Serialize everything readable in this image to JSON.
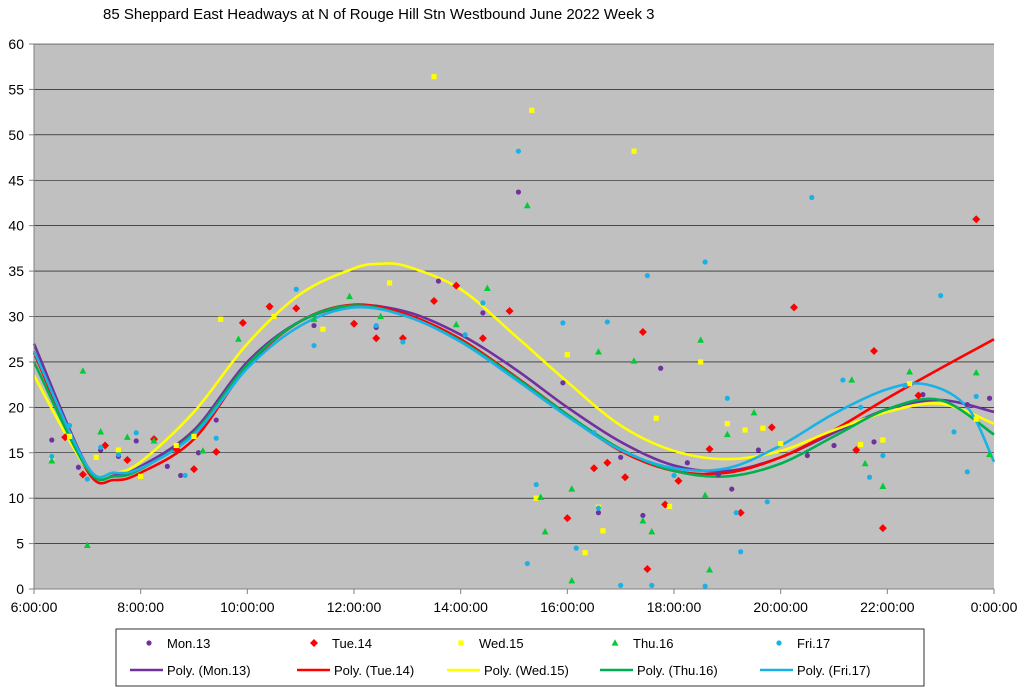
{
  "chart_data": {
    "type": "scatter",
    "title": "85 Sheppard East Headways at N of Rouge Hill Stn Westbound June 2022  Week 3",
    "xlabel": "",
    "ylabel": "",
    "xlim": [
      "6:00:00",
      "0:00:00"
    ],
    "ylim": [
      0,
      60
    ],
    "x_ticks": [
      "6:00:00",
      "8:00:00",
      "10:00:00",
      "12:00:00",
      "14:00:00",
      "16:00:00",
      "18:00:00",
      "20:00:00",
      "22:00:00",
      "0:00:00"
    ],
    "y_ticks": [
      "0",
      "5",
      "10",
      "15",
      "20",
      "25",
      "30",
      "35",
      "40",
      "45",
      "50",
      "55",
      "60"
    ],
    "grid": "horizontal",
    "legend_position": "bottom",
    "plot_background": "#c0c0c0",
    "series": [
      {
        "name": "Mon.13",
        "marker": "circle",
        "color": "#7030a0",
        "points": [
          [
            "6:20",
            16.4
          ],
          [
            "6:50",
            13.4
          ],
          [
            "7:15",
            15.3
          ],
          [
            "7:35",
            14.6
          ],
          [
            "7:55",
            16.3
          ],
          [
            "8:30",
            13.5
          ],
          [
            "8:45",
            12.5
          ],
          [
            "9:05",
            15.0
          ],
          [
            "9:25",
            18.6
          ],
          [
            "10:25",
            31.0
          ],
          [
            "11:15",
            29.0
          ],
          [
            "12:25",
            28.8
          ],
          [
            "13:35",
            33.9
          ],
          [
            "14:25",
            30.4
          ],
          [
            "15:05",
            43.7
          ],
          [
            "15:55",
            22.7
          ],
          [
            "16:35",
            8.4
          ],
          [
            "17:00",
            14.5
          ],
          [
            "17:25",
            8.1
          ],
          [
            "17:45",
            24.3
          ],
          [
            "18:15",
            13.9
          ],
          [
            "18:50",
            12.6
          ],
          [
            "19:05",
            11.0
          ],
          [
            "19:35",
            15.3
          ],
          [
            "20:30",
            14.7
          ],
          [
            "21:00",
            15.8
          ],
          [
            "21:45",
            16.2
          ],
          [
            "22:40",
            21.4
          ],
          [
            "23:30",
            20.3
          ],
          [
            "23:55",
            21.0
          ]
        ]
      },
      {
        "name": "Tue.14",
        "marker": "diamond",
        "color": "#ff0000",
        "points": [
          [
            "6:35",
            16.7
          ],
          [
            "6:55",
            12.6
          ],
          [
            "7:20",
            15.8
          ],
          [
            "7:45",
            14.2
          ],
          [
            "8:15",
            16.5
          ],
          [
            "8:40",
            15.4
          ],
          [
            "9:00",
            13.2
          ],
          [
            "9:25",
            15.1
          ],
          [
            "9:55",
            29.3
          ],
          [
            "10:25",
            31.1
          ],
          [
            "10:55",
            30.9
          ],
          [
            "12:00",
            29.2
          ],
          [
            "12:25",
            27.6
          ],
          [
            "12:55",
            27.6
          ],
          [
            "13:30",
            31.7
          ],
          [
            "13:55",
            33.4
          ],
          [
            "14:25",
            27.6
          ],
          [
            "14:55",
            30.6
          ],
          [
            "16:00",
            7.8
          ],
          [
            "16:30",
            13.3
          ],
          [
            "16:45",
            13.9
          ],
          [
            "17:05",
            12.3
          ],
          [
            "17:25",
            28.3
          ],
          [
            "17:30",
            2.2
          ],
          [
            "17:50",
            9.3
          ],
          [
            "18:05",
            11.9
          ],
          [
            "18:40",
            15.4
          ],
          [
            "19:15",
            8.4
          ],
          [
            "19:50",
            17.8
          ],
          [
            "20:15",
            31.0
          ],
          [
            "21:25",
            15.3
          ],
          [
            "21:45",
            26.2
          ],
          [
            "21:55",
            6.7
          ],
          [
            "22:35",
            21.3
          ],
          [
            "23:40",
            40.7
          ]
        ]
      },
      {
        "name": "Wed.15",
        "marker": "square",
        "color": "#ffff00",
        "points": [
          [
            "6:20",
            14.5
          ],
          [
            "6:40",
            16.8
          ],
          [
            "7:10",
            14.5
          ],
          [
            "7:35",
            15.3
          ],
          [
            "8:00",
            12.4
          ],
          [
            "8:40",
            15.8
          ],
          [
            "9:00",
            16.8
          ],
          [
            "9:30",
            29.7
          ],
          [
            "10:30",
            30.0
          ],
          [
            "11:25",
            28.6
          ],
          [
            "12:40",
            33.7
          ],
          [
            "13:30",
            56.4
          ],
          [
            "15:20",
            52.7
          ],
          [
            "15:25",
            10.0
          ],
          [
            "16:00",
            25.8
          ],
          [
            "16:20",
            4.0
          ],
          [
            "16:35",
            9.0
          ],
          [
            "16:40",
            6.4
          ],
          [
            "17:15",
            48.2
          ],
          [
            "17:40",
            18.8
          ],
          [
            "17:55",
            9.1
          ],
          [
            "18:30",
            25.0
          ],
          [
            "19:00",
            18.2
          ],
          [
            "19:20",
            17.5
          ],
          [
            "19:40",
            17.7
          ],
          [
            "20:00",
            16.0
          ],
          [
            "21:30",
            15.9
          ],
          [
            "21:55",
            16.4
          ],
          [
            "22:25",
            22.6
          ],
          [
            "23:40",
            18.7
          ]
        ]
      },
      {
        "name": "Thu.16",
        "marker": "triangle",
        "color": "#00cc33",
        "points": [
          [
            "6:20",
            14.1
          ],
          [
            "6:55",
            24.0
          ],
          [
            "7:00",
            4.8
          ],
          [
            "7:15",
            17.3
          ],
          [
            "7:45",
            16.7
          ],
          [
            "8:15",
            16.3
          ],
          [
            "9:10",
            15.2
          ],
          [
            "9:50",
            27.5
          ],
          [
            "11:15",
            29.7
          ],
          [
            "11:55",
            32.2
          ],
          [
            "12:30",
            30.0
          ],
          [
            "13:55",
            29.1
          ],
          [
            "14:30",
            33.1
          ],
          [
            "15:15",
            42.2
          ],
          [
            "15:30",
            10.1
          ],
          [
            "15:35",
            6.3
          ],
          [
            "16:05",
            11.0
          ],
          [
            "16:05",
            0.9
          ],
          [
            "16:35",
            26.1
          ],
          [
            "17:15",
            25.1
          ],
          [
            "17:25",
            7.5
          ],
          [
            "17:35",
            6.3
          ],
          [
            "18:30",
            27.4
          ],
          [
            "18:35",
            10.3
          ],
          [
            "18:40",
            2.1
          ],
          [
            "19:00",
            17.0
          ],
          [
            "19:30",
            19.4
          ],
          [
            "21:20",
            23.0
          ],
          [
            "21:35",
            13.8
          ],
          [
            "21:55",
            11.3
          ],
          [
            "22:25",
            23.9
          ],
          [
            "23:55",
            14.8
          ],
          [
            "23:40",
            23.8
          ]
        ]
      },
      {
        "name": "Fri.17",
        "marker": "circle",
        "color": "#1ab2e6",
        "points": [
          [
            "6:20",
            14.6
          ],
          [
            "6:40",
            18.0
          ],
          [
            "7:00",
            12.1
          ],
          [
            "7:15",
            15.6
          ],
          [
            "7:35",
            14.8
          ],
          [
            "7:55",
            17.2
          ],
          [
            "8:50",
            12.5
          ],
          [
            "9:25",
            16.6
          ],
          [
            "10:55",
            33.0
          ],
          [
            "11:15",
            26.8
          ],
          [
            "12:25",
            29.0
          ],
          [
            "12:55",
            27.2
          ],
          [
            "14:05",
            28.0
          ],
          [
            "14:25",
            31.5
          ],
          [
            "15:05",
            48.2
          ],
          [
            "15:15",
            2.8
          ],
          [
            "15:25",
            11.5
          ],
          [
            "15:55",
            29.3
          ],
          [
            "16:10",
            4.5
          ],
          [
            "16:30",
            17.2
          ],
          [
            "16:35",
            8.9
          ],
          [
            "16:45",
            29.4
          ],
          [
            "17:00",
            0.4
          ],
          [
            "17:30",
            34.5
          ],
          [
            "17:35",
            0.4
          ],
          [
            "18:00",
            12.5
          ],
          [
            "18:35",
            36.0
          ],
          [
            "18:35",
            0.3
          ],
          [
            "19:00",
            21.0
          ],
          [
            "19:10",
            8.4
          ],
          [
            "19:15",
            4.1
          ],
          [
            "19:45",
            9.6
          ],
          [
            "20:35",
            43.1
          ],
          [
            "21:10",
            23.0
          ],
          [
            "21:30",
            20.0
          ],
          [
            "21:40",
            12.3
          ],
          [
            "21:55",
            14.7
          ],
          [
            "22:20",
            22.4
          ],
          [
            "23:00",
            32.3
          ],
          [
            "23:15",
            17.3
          ],
          [
            "23:30",
            12.9
          ],
          [
            "23:40",
            21.2
          ]
        ]
      }
    ],
    "trendlines": [
      {
        "name": "Poly. (Mon.13)",
        "color": "#7030a0",
        "points": [
          [
            "6:00",
            27.0
          ],
          [
            "7:00",
            13.5
          ],
          [
            "7:30",
            12.5
          ],
          [
            "8:00",
            13.5
          ],
          [
            "9:00",
            17.5
          ],
          [
            "10:00",
            25.0
          ],
          [
            "11:00",
            29.5
          ],
          [
            "12:00",
            31.2
          ],
          [
            "13:00",
            30.5
          ],
          [
            "14:00",
            28.0
          ],
          [
            "15:00",
            24.3
          ],
          [
            "16:00",
            20.0
          ],
          [
            "17:00",
            16.2
          ],
          [
            "18:00",
            13.6
          ],
          [
            "19:00",
            13.0
          ],
          [
            "20:00",
            14.5
          ],
          [
            "21:00",
            17.2
          ],
          [
            "22:00",
            19.8
          ],
          [
            "23:00",
            20.8
          ],
          [
            "24:00",
            19.5
          ]
        ]
      },
      {
        "name": "Poly. (Tue.14)",
        "color": "#ff0000",
        "points": [
          [
            "6:00",
            26.0
          ],
          [
            "7:00",
            13.0
          ],
          [
            "7:30",
            12.0
          ],
          [
            "8:00",
            12.8
          ],
          [
            "9:00",
            16.5
          ],
          [
            "10:00",
            24.5
          ],
          [
            "11:00",
            29.5
          ],
          [
            "12:00",
            31.3
          ],
          [
            "13:00",
            30.2
          ],
          [
            "14:00",
            27.5
          ],
          [
            "15:00",
            23.5
          ],
          [
            "16:00",
            19.2
          ],
          [
            "17:00",
            15.2
          ],
          [
            "18:00",
            13.0
          ],
          [
            "19:00",
            12.8
          ],
          [
            "20:00",
            14.5
          ],
          [
            "21:00",
            17.5
          ],
          [
            "22:00",
            21.0
          ],
          [
            "23:00",
            24.3
          ],
          [
            "24:00",
            27.5
          ]
        ]
      },
      {
        "name": "Poly. (Wed.15)",
        "color": "#ffff00",
        "points": [
          [
            "6:00",
            23.5
          ],
          [
            "7:00",
            13.2
          ],
          [
            "7:30",
            12.8
          ],
          [
            "8:00",
            14.0
          ],
          [
            "9:00",
            19.5
          ],
          [
            "10:00",
            27.0
          ],
          [
            "11:00",
            32.5
          ],
          [
            "12:00",
            35.3
          ],
          [
            "12:30",
            35.8
          ],
          [
            "13:00",
            35.5
          ],
          [
            "14:00",
            33.0
          ],
          [
            "15:00",
            28.0
          ],
          [
            "16:00",
            22.8
          ],
          [
            "17:00",
            18.0
          ],
          [
            "18:00",
            15.2
          ],
          [
            "19:00",
            14.3
          ],
          [
            "20:00",
            15.2
          ],
          [
            "21:00",
            17.5
          ],
          [
            "22:00",
            19.5
          ],
          [
            "23:00",
            20.4
          ],
          [
            "24:00",
            18.2
          ]
        ]
      },
      {
        "name": "Poly. (Thu.16)",
        "color": "#00b050",
        "points": [
          [
            "6:00",
            25.0
          ],
          [
            "7:00",
            13.2
          ],
          [
            "7:30",
            12.4
          ],
          [
            "8:00",
            13.2
          ],
          [
            "9:00",
            17.2
          ],
          [
            "10:00",
            24.7
          ],
          [
            "11:00",
            29.5
          ],
          [
            "12:00",
            31.2
          ],
          [
            "13:00",
            30.0
          ],
          [
            "14:00",
            27.3
          ],
          [
            "15:00",
            23.4
          ],
          [
            "16:00",
            19.2
          ],
          [
            "17:00",
            15.4
          ],
          [
            "18:00",
            13.0
          ],
          [
            "19:00",
            12.4
          ],
          [
            "20:00",
            13.8
          ],
          [
            "21:00",
            16.8
          ],
          [
            "22:00",
            19.8
          ],
          [
            "23:00",
            20.8
          ],
          [
            "24:00",
            17.0
          ]
        ]
      },
      {
        "name": "Poly. (Fri.17)",
        "color": "#1ab2e6",
        "points": [
          [
            "6:00",
            26.2
          ],
          [
            "7:00",
            13.5
          ],
          [
            "7:30",
            12.8
          ],
          [
            "8:00",
            13.3
          ],
          [
            "9:00",
            17.0
          ],
          [
            "10:00",
            24.3
          ],
          [
            "11:00",
            29.0
          ],
          [
            "12:00",
            31.0
          ],
          [
            "13:00",
            30.0
          ],
          [
            "14:00",
            27.2
          ],
          [
            "15:00",
            23.2
          ],
          [
            "16:00",
            19.0
          ],
          [
            "17:00",
            15.3
          ],
          [
            "18:00",
            13.3
          ],
          [
            "19:00",
            13.3
          ],
          [
            "20:00",
            15.8
          ],
          [
            "21:00",
            19.3
          ],
          [
            "22:00",
            22.0
          ],
          [
            "22:45",
            22.5
          ],
          [
            "23:30",
            20.0
          ],
          [
            "24:00",
            14.0
          ]
        ]
      }
    ]
  }
}
